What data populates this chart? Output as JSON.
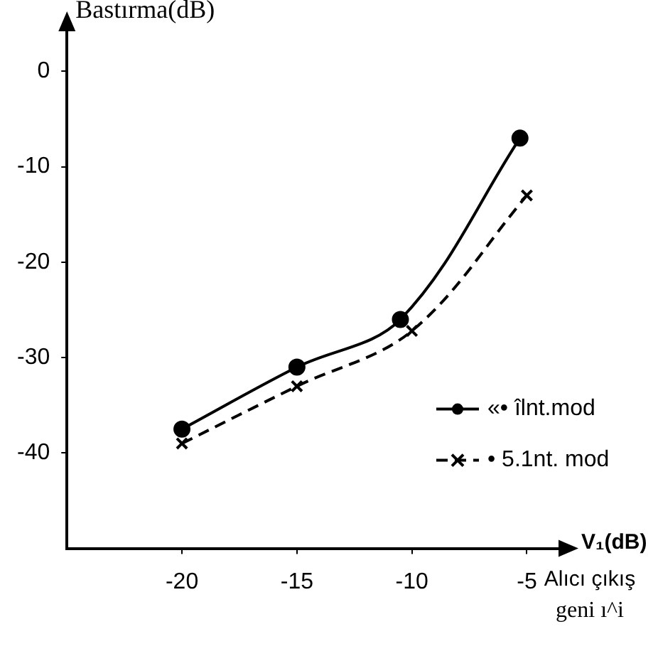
{
  "chart_data": {
    "type": "line",
    "ylabel": "Bastırma(dB)",
    "xlabel": "V₁(dB)",
    "annotations": [
      "Alıcı çıkış geni ı^i"
    ],
    "xlim": [
      -25,
      -3.5
    ],
    "xticks": [
      -20,
      -15,
      -10,
      -5
    ],
    "ylim": [
      -50,
      4.5
    ],
    "yticks": [
      0,
      -10,
      -20,
      -30,
      -40
    ],
    "grid": false,
    "legend": "bottom right",
    "series": [
      {
        "name": "«• îlnt.mod",
        "color": "#000000",
        "x": [
          -20,
          -15,
          -10.5,
          -5.3
        ],
        "values": [
          -37.5,
          -31,
          -26,
          -7
        ],
        "marker": "circle",
        "line_style": "solid"
      },
      {
        "name": "• 5.1nt. mod",
        "color": "#000000",
        "x": [
          -20,
          -15,
          -10,
          -5
        ],
        "values": [
          -39,
          -33,
          -27.2,
          -13
        ],
        "marker": "cross",
        "line_style": "dashed"
      }
    ]
  }
}
